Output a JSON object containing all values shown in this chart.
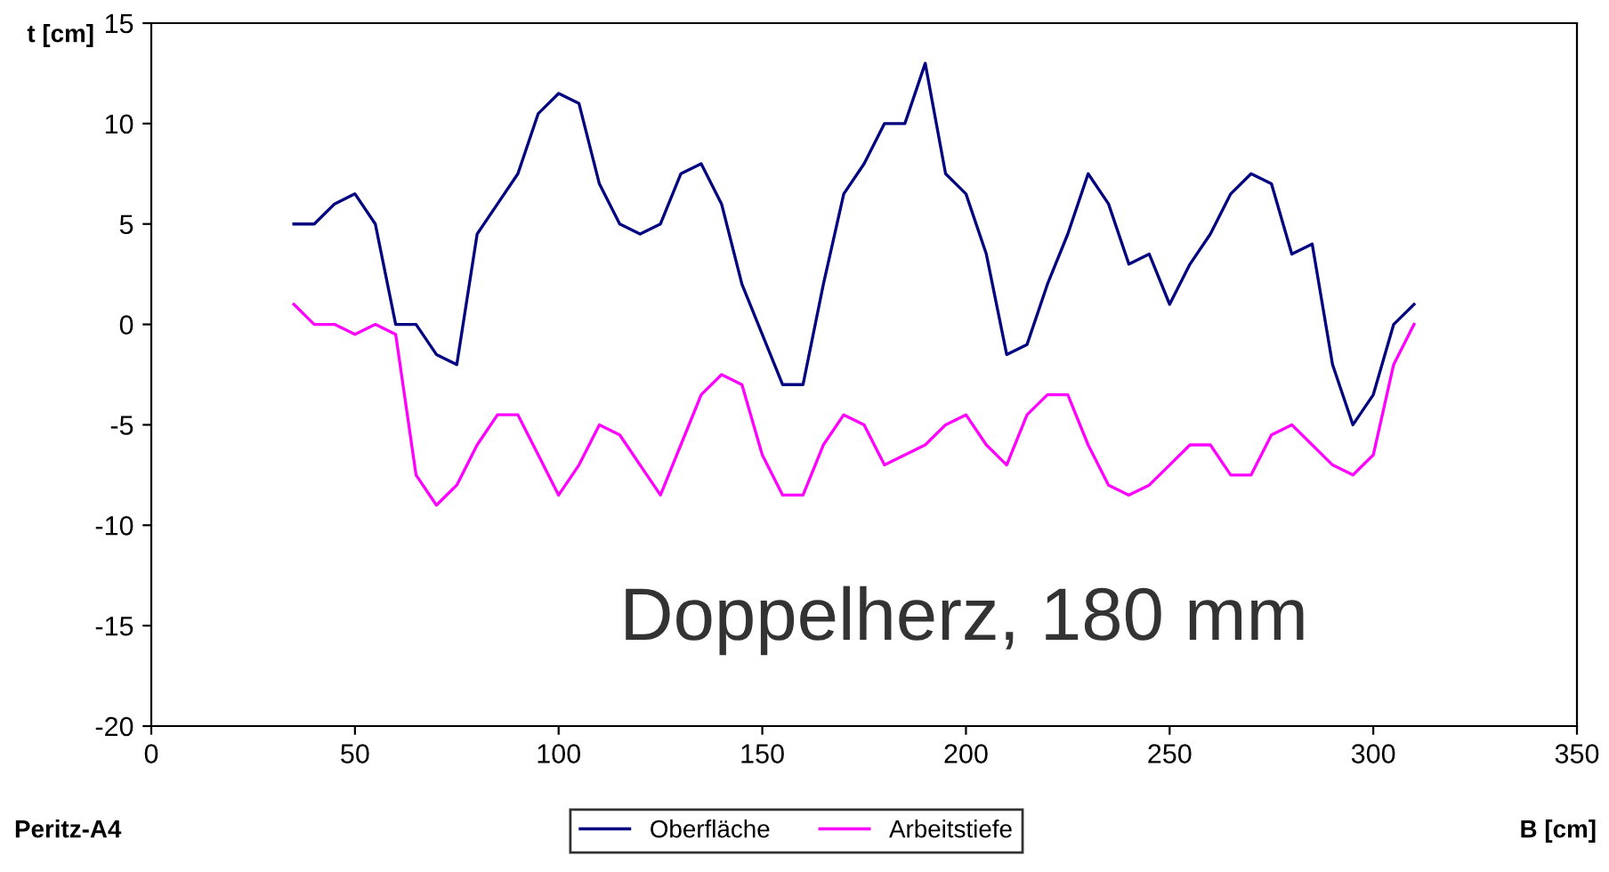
{
  "chart_data": {
    "type": "line",
    "xlabel": "B [cm]",
    "ylabel": "t [cm]",
    "x": [
      35,
      40,
      45,
      50,
      55,
      60,
      65,
      70,
      75,
      80,
      85,
      90,
      95,
      100,
      105,
      110,
      115,
      120,
      125,
      130,
      135,
      140,
      145,
      150,
      155,
      160,
      165,
      170,
      175,
      180,
      185,
      190,
      195,
      200,
      205,
      210,
      215,
      220,
      225,
      230,
      235,
      240,
      245,
      250,
      255,
      260,
      265,
      270,
      275,
      280,
      285,
      290,
      295,
      300,
      305,
      310
    ],
    "series": [
      {
        "name": "Oberfläche",
        "color": "#000080",
        "values": [
          5,
          5,
          6,
          6.5,
          5,
          0,
          0,
          -1.5,
          -2,
          4.5,
          6,
          7.5,
          10.5,
          11.5,
          11,
          7,
          5,
          4.5,
          5,
          7.5,
          8,
          6,
          2,
          -0.5,
          -3,
          -3,
          2,
          6.5,
          8,
          10,
          10,
          13,
          7.5,
          6.5,
          3.5,
          -1.5,
          -1,
          2,
          4.5,
          7.5,
          6,
          3,
          3.5,
          1,
          3,
          4.5,
          6.5,
          7.5,
          7,
          3.5,
          4,
          -2,
          -5,
          -3.5,
          0,
          1
        ]
      },
      {
        "name": "Arbeitstiefe",
        "color": "#ff00ff",
        "values": [
          1,
          0,
          0,
          -0.5,
          0,
          -0.5,
          -7.5,
          -9,
          -8,
          -6,
          -4.5,
          -4.5,
          -6.5,
          -8.5,
          -7,
          -5,
          -5.5,
          -7,
          -8.5,
          -6,
          -3.5,
          -2.5,
          -3,
          -6.5,
          -8.5,
          -8.5,
          -6,
          -4.5,
          -5,
          -7,
          -6.5,
          -6,
          -5,
          -4.5,
          -6,
          -7,
          -4.5,
          -3.5,
          -3.5,
          -6,
          -8,
          -8.5,
          -8,
          -7,
          -6,
          -6,
          -7.5,
          -7.5,
          -5.5,
          -5,
          -6,
          -7,
          -7.5,
          -6.5,
          -2,
          0
        ]
      }
    ],
    "xlim": [
      0,
      350
    ],
    "xticks": [
      0,
      50,
      100,
      150,
      200,
      250,
      300,
      350
    ],
    "ylim": [
      -20,
      15
    ],
    "yticks": [
      -20,
      -15,
      -10,
      -5,
      0,
      5,
      10,
      15
    ],
    "grid": false,
    "legend": "bottom",
    "marker": "none",
    "line_style": "solid",
    "annotations": [
      "Doppelherz, 180 mm",
      "Peritz-A4"
    ]
  }
}
